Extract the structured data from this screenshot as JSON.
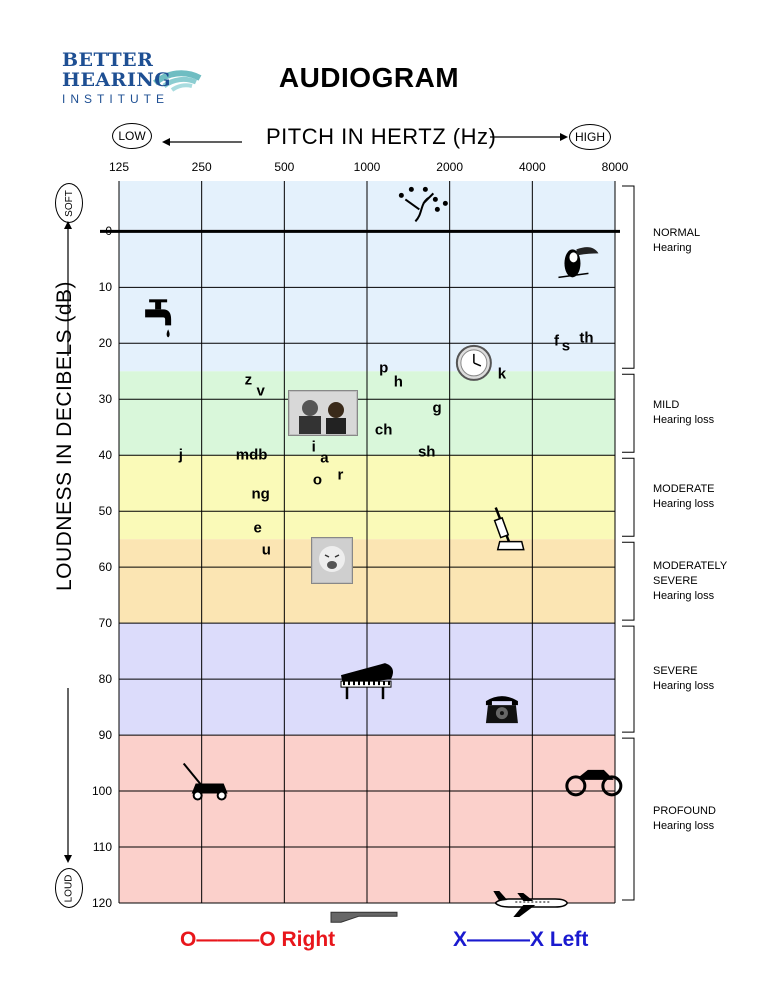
{
  "logo": {
    "line1": "BETTER",
    "line2": "HEARING",
    "line3": "INSTITUTE"
  },
  "title": "AUDIOGRAM",
  "x_axis_label": "PITCH IN HERTZ (Hz)",
  "low_label": "LOW",
  "high_label": "HIGH",
  "y_axis_label": "LOUDNESS IN DECIBELS (dB)",
  "soft_label": "SOFT",
  "loud_label": "LOUD",
  "legend": {
    "right": "O———O Right",
    "left": "X———X  Left"
  },
  "colors": {
    "normal": "#e4f1fc",
    "mild": "#d9f7da",
    "moderate": "#fafab8",
    "moderately_severe": "#fbe5b3",
    "severe": "#dcdcfb",
    "profound": "#fbd0cb"
  },
  "chart_data": {
    "type": "scatter",
    "title": "AUDIOGRAM",
    "xlabel": "PITCH IN HERTZ (Hz)",
    "ylabel": "LOUDNESS IN DECIBELS (dB)",
    "x_scale": "log2",
    "x_ticks": [
      "125",
      "250",
      "500",
      "1000",
      "2000",
      "4000",
      "8000"
    ],
    "y_ticks": [
      "0",
      "10",
      "20",
      "30",
      "40",
      "50",
      "60",
      "70",
      "80",
      "90",
      "100",
      "110",
      "120"
    ],
    "xlim": [
      125,
      8000
    ],
    "ylim": [
      -9,
      120
    ],
    "y_inverted": true,
    "grid": true,
    "bands": [
      {
        "label_line1": "NORMAL",
        "label_line2": "Hearing",
        "label_line3": "",
        "from_db": -9,
        "to_db": 25,
        "color_key": "normal"
      },
      {
        "label_line1": "MILD",
        "label_line2": "Hearing loss",
        "label_line3": "",
        "from_db": 25,
        "to_db": 40,
        "color_key": "mild"
      },
      {
        "label_line1": "MODERATE",
        "label_line2": "Hearing loss",
        "label_line3": "",
        "from_db": 40,
        "to_db": 55,
        "color_key": "moderate"
      },
      {
        "label_line1": "MODERATELY",
        "label_line2": "SEVERE",
        "label_line3": "Hearing loss",
        "from_db": 55,
        "to_db": 70,
        "color_key": "moderately_severe"
      },
      {
        "label_line1": "SEVERE",
        "label_line2": "Hearing loss",
        "label_line3": "",
        "from_db": 70,
        "to_db": 90,
        "color_key": "severe"
      },
      {
        "label_line1": "PROFOUND",
        "label_line2": "Hearing loss",
        "label_line3": "",
        "from_db": 90,
        "to_db": 120,
        "color_key": "profound"
      }
    ],
    "phonemes": [
      {
        "text": "z",
        "hz": 370,
        "db": 26.5
      },
      {
        "text": "v",
        "hz": 410,
        "db": 28.5
      },
      {
        "text": "j",
        "hz": 210,
        "db": 40
      },
      {
        "text": "mdb",
        "hz": 380,
        "db": 40
      },
      {
        "text": "ng",
        "hz": 410,
        "db": 47
      },
      {
        "text": "e",
        "hz": 400,
        "db": 53
      },
      {
        "text": "u",
        "hz": 430,
        "db": 57
      },
      {
        "text": "i",
        "hz": 640,
        "db": 38.5
      },
      {
        "text": "a",
        "hz": 700,
        "db": 40.5
      },
      {
        "text": "o",
        "hz": 660,
        "db": 44.5
      },
      {
        "text": "r",
        "hz": 800,
        "db": 43.5
      },
      {
        "text": "p",
        "hz": 1150,
        "db": 24.5
      },
      {
        "text": "h",
        "hz": 1300,
        "db": 27
      },
      {
        "text": "g",
        "hz": 1800,
        "db": 31.5
      },
      {
        "text": "ch",
        "hz": 1150,
        "db": 35.5
      },
      {
        "text": "sh",
        "hz": 1650,
        "db": 39.5
      },
      {
        "text": "k",
        "hz": 3100,
        "db": 25.5
      },
      {
        "text": "f",
        "hz": 4900,
        "db": 19.5
      },
      {
        "text": "s",
        "hz": 5300,
        "db": 20.5
      },
      {
        "text": "th",
        "hz": 6300,
        "db": 19
      }
    ],
    "icons": [
      {
        "name": "tree-icon",
        "hz": 1500,
        "db": -5
      },
      {
        "name": "toucan-icon",
        "hz": 5600,
        "db": 5
      },
      {
        "name": "faucet-icon",
        "hz": 175,
        "db": 15
      },
      {
        "name": "clock-icon",
        "hz": 2450,
        "db": 23.5
      },
      {
        "name": "talking-people-icon",
        "hz": 570,
        "db": 30.5
      },
      {
        "name": "crying-baby-icon",
        "hz": 700,
        "db": 58
      },
      {
        "name": "vacuum-icon",
        "hz": 3200,
        "db": 54
      },
      {
        "name": "piano-icon",
        "hz": 1000,
        "db": 80
      },
      {
        "name": "telephone-icon",
        "hz": 3100,
        "db": 85
      },
      {
        "name": "lawnmower-icon",
        "hz": 250,
        "db": 99
      },
      {
        "name": "motorcycle-icon",
        "hz": 6700,
        "db": 98
      },
      {
        "name": "shotgun-icon",
        "hz": 1000,
        "db": 122
      },
      {
        "name": "airplane-icon",
        "hz": 3900,
        "db": 120
      }
    ]
  }
}
